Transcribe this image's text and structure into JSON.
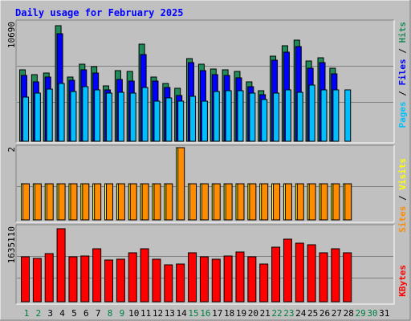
{
  "colors": {
    "frame_bg": "#c0c0c0",
    "panel_bg": "#c0c0c0",
    "border_light": "#ffffff",
    "border_dark": "#808080",
    "title": "#0000ff",
    "hits": "#228b5a",
    "files": "#0000ff",
    "pages": "#00bfff",
    "visits": "#ffff00",
    "sites": "#ff8c00",
    "kbytes": "#ff0000",
    "day_normal": "#000000",
    "day_weekend": "#008040"
  },
  "chart_data": {
    "type": "bar",
    "title": "Daily usage for February 2025",
    "days": [
      "1",
      "2",
      "3",
      "4",
      "5",
      "6",
      "7",
      "8",
      "9",
      "10",
      "11",
      "12",
      "13",
      "14",
      "15",
      "16",
      "17",
      "18",
      "19",
      "20",
      "21",
      "22",
      "23",
      "24",
      "25",
      "26",
      "27",
      "28",
      "29",
      "30",
      "31"
    ],
    "weekend_days": [
      "1",
      "2",
      "8",
      "9",
      "15",
      "16",
      "22",
      "23",
      "29",
      "30"
    ],
    "panel_top": {
      "max_label": "10690",
      "legend": {
        "pages": "Pages",
        "sep1": " / ",
        "files": "Files",
        "sep2": " / ",
        "hits": "Hits"
      },
      "ylim": [
        0,
        10690
      ],
      "series": [
        {
          "name": "Hits",
          "values": [
            6530,
            6150,
            6270,
            10600,
            5920,
            7100,
            6840,
            5110,
            6460,
            6400,
            8890,
            5900,
            5320,
            4890,
            7560,
            7080,
            6670,
            6580,
            6390,
            5480,
            4660,
            7820,
            8790,
            9270,
            7370,
            7670,
            6740,
            0,
            0,
            0,
            0
          ]
        },
        {
          "name": "Files",
          "values": [
            6060,
            5470,
            5890,
            9870,
            5630,
            6550,
            6270,
            4700,
            5690,
            5560,
            7970,
            5520,
            4940,
            4210,
            7210,
            6520,
            6140,
            6080,
            5830,
            5000,
            4280,
            7420,
            8150,
            8680,
            6690,
            7230,
            6180,
            0,
            0,
            0,
            0
          ]
        },
        {
          "name": "Pages",
          "values": [
            4090,
            4400,
            4810,
            5280,
            4550,
            5050,
            4690,
            4450,
            4520,
            4460,
            4950,
            3720,
            3950,
            3720,
            4140,
            3690,
            4550,
            4640,
            4640,
            4440,
            3830,
            4400,
            4750,
            4520,
            5190,
            4720,
            4700,
            4730,
            0,
            0,
            0
          ]
        }
      ]
    },
    "panel_mid": {
      "max_label": "2",
      "legend": {
        "sites": "Sites",
        "sep": " / ",
        "visits": "Visits"
      },
      "ylim": [
        0,
        2
      ],
      "series": [
        {
          "name": "Visits",
          "values": [
            1,
            1,
            1,
            1,
            1,
            1,
            1,
            1,
            1,
            1,
            1,
            1,
            1,
            2,
            1,
            1,
            1,
            1,
            1,
            1,
            1,
            1,
            1,
            1,
            1,
            1,
            1,
            1,
            0,
            0,
            0
          ]
        },
        {
          "name": "Sites",
          "values": [
            1,
            1,
            1,
            1,
            1,
            1,
            1,
            1,
            1,
            1,
            1,
            1,
            1,
            2,
            1,
            1,
            1,
            1,
            1,
            1,
            1,
            1,
            1,
            1,
            1,
            1,
            1,
            1,
            0,
            0,
            0
          ]
        }
      ]
    },
    "panel_bot": {
      "max_label": "1635110",
      "legend": {
        "kbytes": "KBytes"
      },
      "ylim": [
        0,
        1635110
      ],
      "series": [
        {
          "name": "KBytes",
          "values": [
            1010000,
            970000,
            1080000,
            1640000,
            1000000,
            1020000,
            1180000,
            940000,
            960000,
            1090000,
            1180000,
            960000,
            830000,
            850000,
            1100000,
            1000000,
            960000,
            1030000,
            1110000,
            1000000,
            850000,
            1220000,
            1400000,
            1320000,
            1280000,
            1090000,
            1180000,
            1090000,
            0,
            0,
            0
          ]
        }
      ]
    }
  }
}
